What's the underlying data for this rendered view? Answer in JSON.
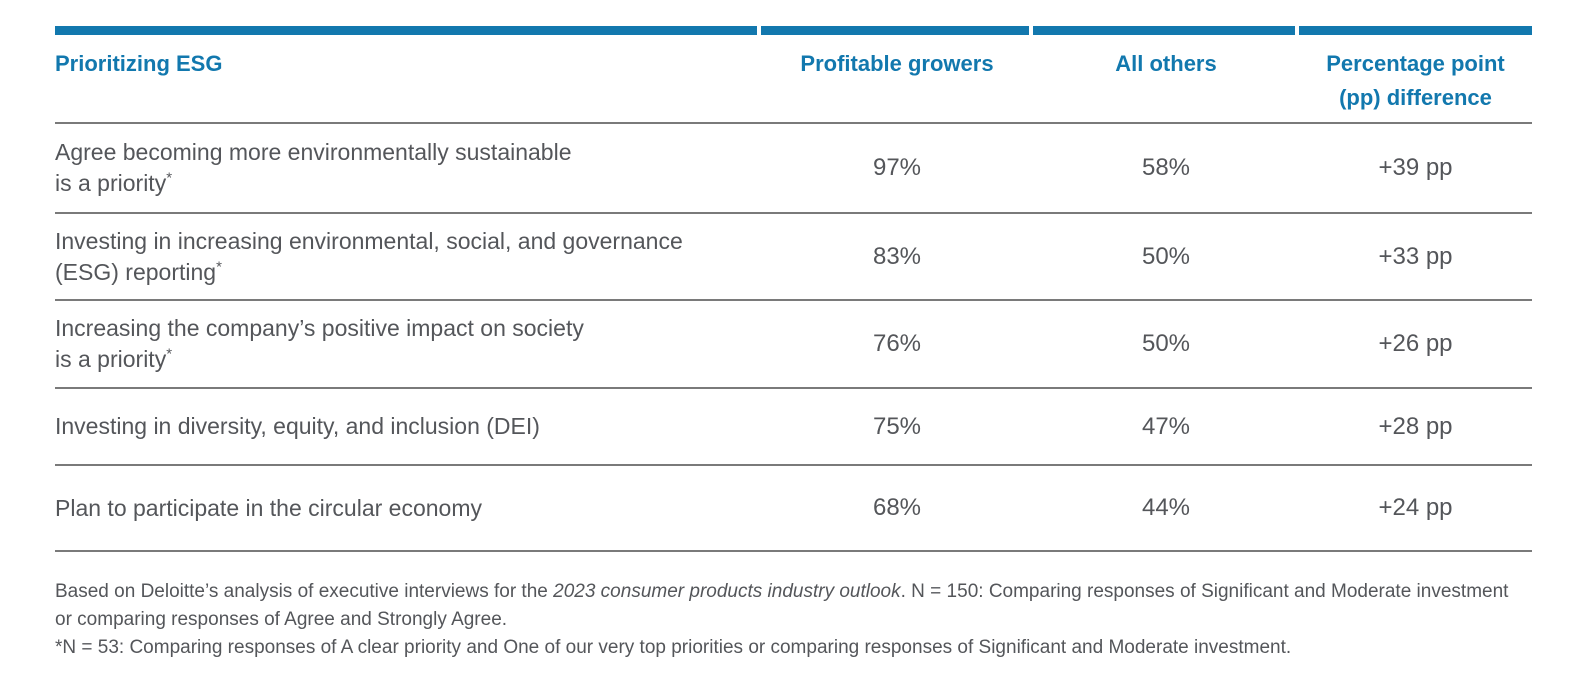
{
  "colors": {
    "accent_blue": "#1278AE",
    "body_text": "#54565A",
    "divider_gray": "#7A7A7A",
    "background": "#FFFFFF"
  },
  "header": {
    "title": "Prioritizing ESG",
    "col_profitable_growers": "Profitable growers",
    "col_all_others": "All others",
    "col_pp_line1": "Percentage point",
    "col_pp_line2": "(pp) difference"
  },
  "rows": [
    {
      "label_line1": "Agree becoming more environmentally sustainable",
      "label_line2": "is a priority",
      "sup": "*",
      "profitable_growers": "97%",
      "all_others": "58%",
      "pp_difference": "+39 pp"
    },
    {
      "label_line1": "Investing in increasing environmental, social, and governance",
      "label_line2": "(ESG) reporting",
      "sup": "*",
      "profitable_growers": "83%",
      "all_others": "50%",
      "pp_difference": "+33 pp"
    },
    {
      "label_line1": "Increasing the company’s positive impact on society",
      "label_line2": "is a priority",
      "sup": "*",
      "profitable_growers": "76%",
      "all_others": "50%",
      "pp_difference": "+26 pp"
    },
    {
      "label_line1": "Investing in diversity, equity, and inclusion (DEI)",
      "label_line2": "",
      "sup": "",
      "profitable_growers": "75%",
      "all_others": "47%",
      "pp_difference": "+28 pp"
    },
    {
      "label_line1": "Plan to participate in the circular economy",
      "label_line2": "",
      "sup": "",
      "profitable_growers": "68%",
      "all_others": "44%",
      "pp_difference": "+24 pp"
    }
  ],
  "footnotes": {
    "line1_pre": "Based on Deloitte’s analysis of executive interviews for the ",
    "line1_italic": "2023 consumer products industry outlook",
    "line1_post": ". N = 150: Comparing responses of Significant and Moderate investment or comparing responses of Agree and Strongly Agree.",
    "line2": "*N = 53: Comparing responses of A clear priority and One of our very top priorities or comparing responses of Significant and Moderate investment."
  },
  "chart_data": {
    "type": "table",
    "title": "Prioritizing ESG",
    "columns": [
      "Prioritizing ESG",
      "Profitable growers",
      "All others",
      "Percentage point (pp) difference"
    ],
    "categories": [
      "Agree becoming more environmentally sustainable is a priority*",
      "Investing in increasing environmental, social, and governance (ESG) reporting*",
      "Increasing the company’s positive impact on society is a priority*",
      "Investing in diversity, equity, and inclusion (DEI)",
      "Plan to participate in the circular economy"
    ],
    "series": [
      {
        "name": "Profitable growers",
        "values": [
          97,
          83,
          76,
          75,
          68
        ],
        "unit": "%"
      },
      {
        "name": "All others",
        "values": [
          58,
          50,
          50,
          47,
          44
        ],
        "unit": "%"
      },
      {
        "name": "Percentage point (pp) difference",
        "values": [
          39,
          33,
          26,
          28,
          24
        ],
        "unit": "pp",
        "display": [
          "+39 pp",
          "+33 pp",
          "+26 pp",
          "+28 pp",
          "+24 pp"
        ]
      }
    ],
    "notes": [
      "Based on Deloitte’s analysis of executive interviews for the 2023 consumer products industry outlook. N = 150: Comparing responses of Significant and Moderate investment or comparing responses of Agree and Strongly Agree.",
      "*N = 53: Comparing responses of A clear priority and One of our very top priorities or comparing responses of Significant and Moderate investment."
    ]
  }
}
